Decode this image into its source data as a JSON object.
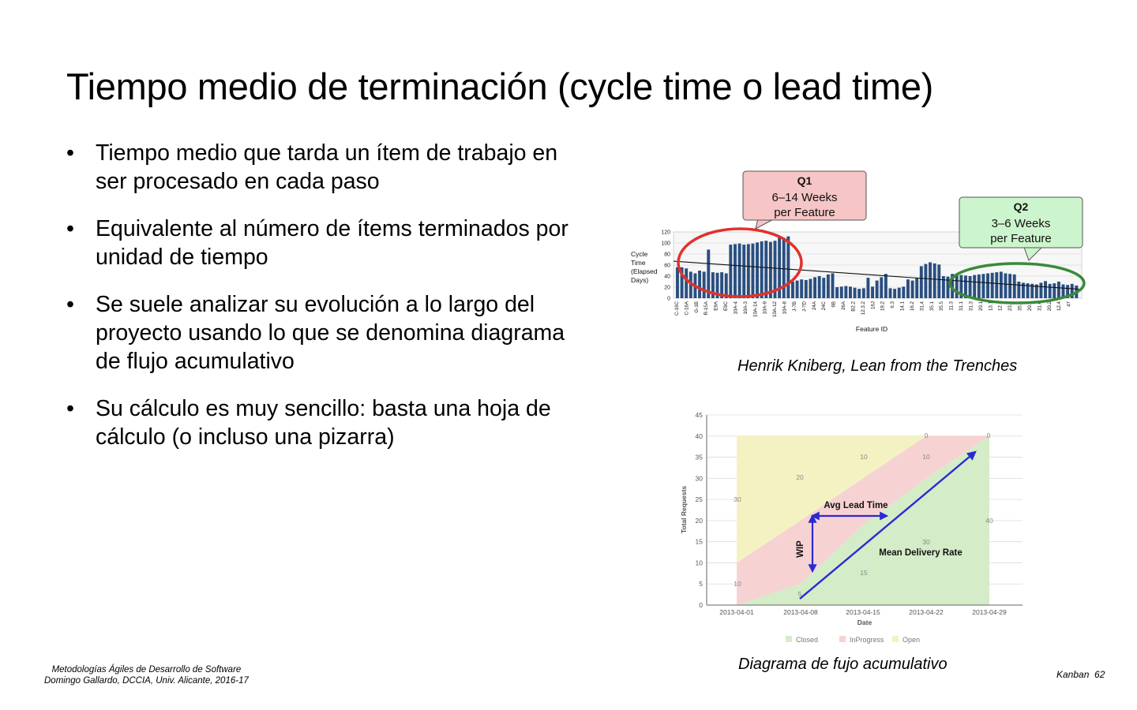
{
  "slide": {
    "title": "Tiempo medio de terminación (cycle time o lead time)",
    "bullets": [
      "Tiempo medio que tarda un ítem de trabajo en ser procesado en cada paso",
      "Equivalente al número de ítems terminados por unidad de tiempo",
      "Se suele analizar su evolución a lo largo del proyecto usando lo que se denomina diagrama de flujo acumulativo",
      "Su cálculo es muy sencillo: basta una hoja de cálculo (o incluso una pizarra)"
    ],
    "bullet_symbol": "•",
    "caption1": "Henrik Kniberg, Lean from the Trenches",
    "caption2": "Diagrama de fujo acumulativo",
    "footer": {
      "line1": "Metodologías Ágiles de Desarrollo de Software",
      "line2": "Domingo Gallardo, DCCIA, Univ. Alicante, 2016-17",
      "section": "Kanban",
      "page": "62"
    }
  },
  "chart_data": [
    {
      "type": "bar",
      "ylabel": "Cycle Time (Elapsed Days)",
      "ylabel_lines": [
        "Cycle",
        "Time",
        "(Elapsed",
        "Days)"
      ],
      "xlabel": "Feature ID",
      "ylim": [
        0,
        120
      ],
      "yticks": [
        0,
        20,
        40,
        60,
        80,
        100,
        120
      ],
      "grid": true,
      "trend_line": [
        67,
        16
      ],
      "tick_labels": [
        "C-16C",
        "C-16A",
        "G-1B",
        "R-15A",
        "E9A",
        "E9C",
        "10A-4",
        "10A-3",
        "10A-14",
        "10A-9",
        "10A-12",
        "10A-8",
        "J-7B",
        "J-7D",
        "24A",
        "24C",
        "6B",
        "26A",
        "B2.2",
        "12.3.2",
        "16J",
        "19.2",
        "6.3",
        "14.1",
        "16.2",
        "31.4",
        "35.1",
        "35.5",
        "11.3",
        "31.1",
        "31.3",
        "20.1",
        "13.1",
        "12.1",
        "23.1",
        "35.3",
        "20.8",
        "31.6",
        "20.2",
        "12.4",
        "47"
      ],
      "values": [
        56,
        56,
        54,
        48,
        45,
        50,
        48,
        88,
        47,
        46,
        47,
        45,
        97,
        98,
        99,
        97,
        98,
        99,
        101,
        103,
        104,
        102,
        104,
        110,
        106,
        112,
        30,
        32,
        34,
        33,
        35,
        38,
        40,
        37,
        43,
        45,
        20,
        21,
        22,
        21,
        19,
        17,
        18,
        37,
        21,
        32,
        38,
        44,
        18,
        17,
        19,
        21,
        34,
        32,
        37,
        58,
        62,
        65,
        63,
        61,
        40,
        39,
        44,
        43,
        42,
        41,
        40,
        42,
        43,
        44,
        45,
        46,
        47,
        48,
        45,
        44,
        43,
        30,
        28,
        27,
        26,
        25,
        28,
        31,
        26,
        27,
        30,
        25,
        24,
        26,
        23
      ],
      "annotations": [
        {
          "label": "Q1",
          "text_lines": [
            "6–14 Weeks",
            "per Feature"
          ],
          "color": "#f6c5c5",
          "ring_color": "#e0322e"
        },
        {
          "label": "Q2",
          "text_lines": [
            "3–6 Weeks",
            "per Feature"
          ],
          "color": "#cdf5cd",
          "ring_color": "#3a8a3a"
        }
      ],
      "bar_color": "#2a4f80"
    },
    {
      "type": "area",
      "xlabel": "Date",
      "ylabel": "Total Requests",
      "ylim": [
        0,
        45
      ],
      "yticks": [
        0,
        5,
        10,
        15,
        20,
        25,
        30,
        35,
        40,
        45
      ],
      "categories": [
        "2013-04-01",
        "2013-04-08",
        "2013-04-15",
        "2013-04-22",
        "2013-04-29"
      ],
      "series": [
        {
          "name": "Closed",
          "color": "#d4ecc8",
          "values": [
            0,
            5,
            19,
            30,
            40
          ]
        },
        {
          "name": "InProgress",
          "color": "#f7d2d2",
          "values": [
            10,
            20,
            30,
            40,
            40
          ]
        },
        {
          "name": "Open",
          "color": "#f4f2c2",
          "values": [
            40,
            40,
            40,
            40,
            40
          ]
        }
      ],
      "region_labels": {
        "open": [
          "30",
          "20",
          "10",
          "10",
          "0",
          "0"
        ],
        "in_progress": [
          "10",
          "30",
          "40"
        ],
        "closed": [
          "15"
        ]
      },
      "annotations": {
        "lead_time": "Avg Lead Time",
        "wip": "WIP",
        "delivery": "Mean Delivery Rate",
        "arrow_color": "#2a2ad0"
      }
    }
  ]
}
